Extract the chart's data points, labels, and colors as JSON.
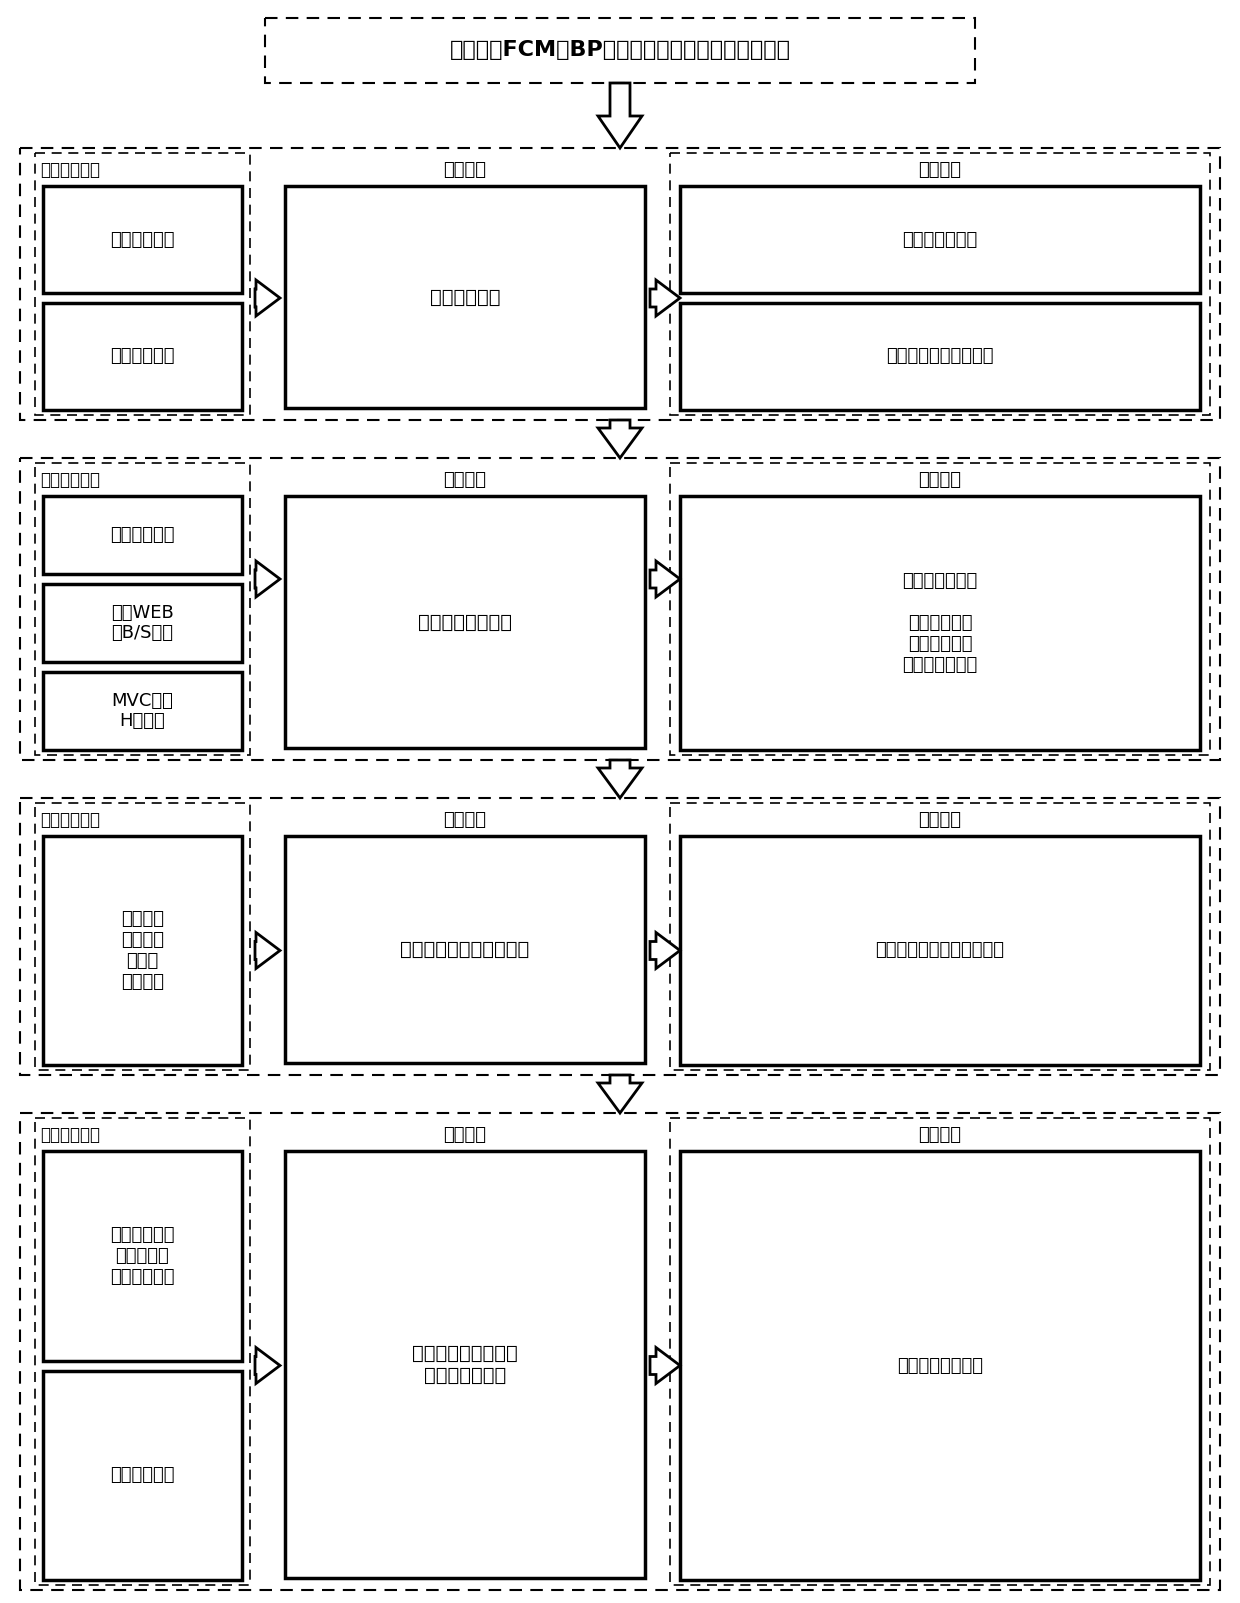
{
  "title": "一种基于FCM和BP算法的污水监测系统的建立过程",
  "sections": [
    {
      "left_label": "主要研究方法",
      "right_label": "研究结果",
      "center_label": "研究问题",
      "center_text": "污水解析研究",
      "left_boxes": [
        "模糊聚类方法",
        "神经网络方法"
      ],
      "right_boxes": [
        "水污染解析研究",
        "多种来源废水检测研究"
      ],
      "right_single": false,
      "right_content_single": false
    },
    {
      "left_label": "主要研究方法",
      "right_label": "研究结果",
      "center_label": "研究问题",
      "center_text": "水质监测管理平台",
      "left_boxes": [
        "面向对象方法",
        "基于WEB\n的B/S结构",
        "MVC模式\nH层框架"
      ],
      "right_boxes": [
        "废水源管理模块",
        "数据编辑模块\n数据查询模块\n污染源解析模块"
      ],
      "right_single": true,
      "right_content_single": true,
      "right_content_text": "废水源管理模块\n\n数据编辑模块\n数据查询模块\n污染源解析模块"
    },
    {
      "left_label": "主要工艺技术",
      "right_label": "研究结果",
      "center_label": "研究问题",
      "center_text": "水质监测物联网系统架构",
      "left_boxes": [
        "传感层、\n传输层、\n应用层\n关键设计"
      ],
      "right_boxes": [
        "建立污水监测系统硬件架构"
      ],
      "right_single": true,
      "right_content_single": true,
      "right_content_text": "建立污水监测系统硬件架构"
    },
    {
      "left_label": "主要工艺技术",
      "right_label": "研究结果",
      "center_label": "研究问题",
      "center_text": "污水监测物联网系统\n信息采集与传递",
      "left_boxes": [
        "水质传感器、\n微控制器、\n无线模块设计",
        "通信协议规则"
      ],
      "right_boxes": [
        "建立污水监测系统"
      ],
      "right_single": true,
      "right_content_single": true,
      "right_content_text": "建立污水监测系统"
    }
  ],
  "bg_color": "#ffffff"
}
